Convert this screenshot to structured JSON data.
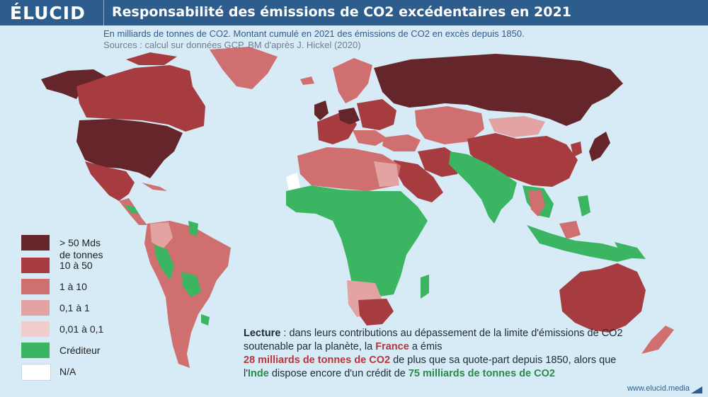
{
  "header": {
    "logo": "ÉLUCID",
    "title": "Responsabilité des émissions de CO2 excédentaires en 2021",
    "subtitle": "En milliards de tonnes de CO2. Montant cumulé en 2021 des émissions de CO2 en excès depuis 1850.",
    "sources": "Sources : calcul sur données GCP, BM d'après J. Hickel (2020)"
  },
  "colors": {
    "gt50": "#64262a",
    "c10_50": "#a63c40",
    "c1_10": "#cf6f70",
    "c01_1": "#e3a3a3",
    "c001_01": "#f1cdcd",
    "creditor": "#3cb562",
    "na": "#ffffff",
    "ocean": "#d6ebf5",
    "header": "#2d5d8c"
  },
  "legend": [
    {
      "label": "> 50 Mds",
      "label2": "de tonnes",
      "color": "#64262a"
    },
    {
      "label": "10 à 50",
      "color": "#a63c40"
    },
    {
      "label": "1 à 10",
      "color": "#cf6f70"
    },
    {
      "label": "0,1 à 1",
      "color": "#e3a3a3"
    },
    {
      "label": "0,01 à 0,1",
      "color": "#f1cdcd"
    },
    {
      "label": "Créditeur",
      "color": "#3cb562"
    },
    {
      "label": "N/A",
      "color": "#ffffff"
    }
  ],
  "reading": {
    "lead": "Lecture",
    "p1": " : dans leurs contributions au dépassement de la limite d'émissions de CO2 soutenable par la planète, la ",
    "france": "France",
    "p2": " a émis ",
    "france_amount": "28 milliards de tonnes de CO2",
    "p3": " de plus que sa quote-part depuis 1850, alors que l'",
    "inde": "Inde",
    "p4": " dispose encore d'un crédit de ",
    "inde_amount": "75 milliards de tonnes de CO2"
  },
  "footer": "www.elucid.media"
}
